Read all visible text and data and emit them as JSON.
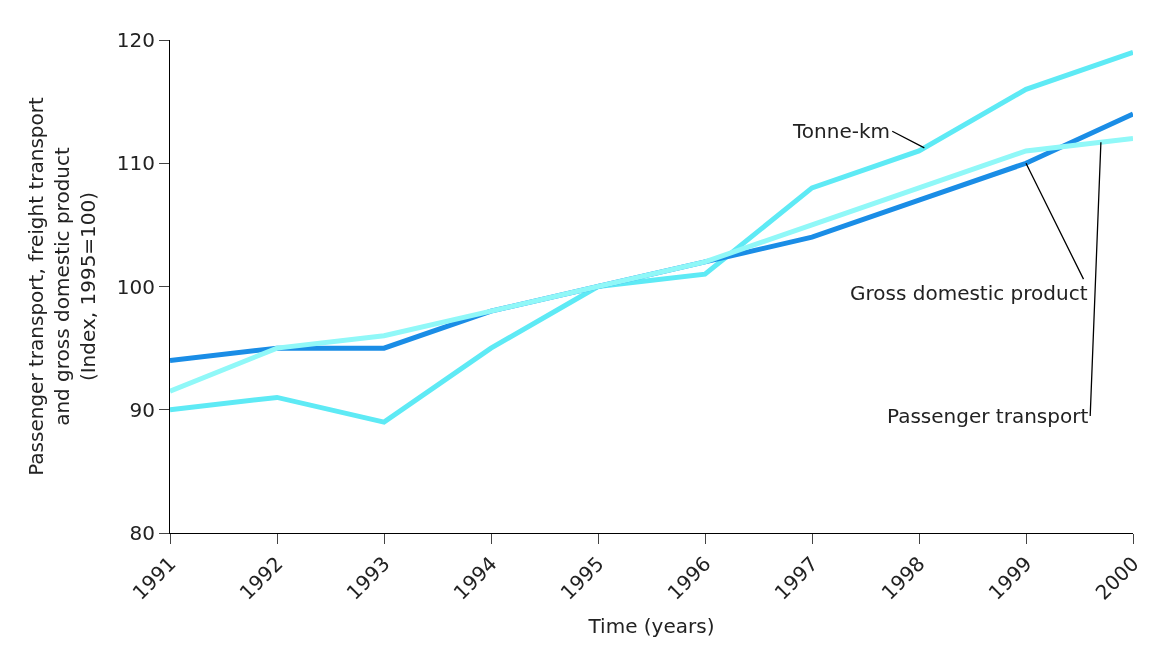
{
  "chart_data": {
    "type": "line",
    "xlabel": "Time (years)",
    "ylabel": "Passenger transport, freight transport\nand gross domestic product\n(Index, 1995=100)",
    "categories": [
      "1991",
      "1992",
      "1993",
      "1994",
      "1995",
      "1996",
      "1997",
      "1998",
      "1999",
      "2000"
    ],
    "series": [
      {
        "name": "Tonne-km",
        "color": "#5eeaf5",
        "values": [
          90,
          91,
          89,
          95,
          100,
          101,
          108,
          111,
          116,
          119
        ]
      },
      {
        "name": "Gross domestic product",
        "color": "#1a8de6",
        "values": [
          94,
          95,
          95,
          98,
          100,
          102,
          104,
          107,
          110,
          114
        ]
      },
      {
        "name": "Passenger transport",
        "color": "#90f8f8",
        "values": [
          91.5,
          95,
          96,
          98,
          100,
          102,
          105,
          108,
          111,
          112
        ]
      }
    ],
    "ylim": [
      80,
      120
    ],
    "yticks": [
      80,
      90,
      100,
      110,
      120
    ],
    "legend": false,
    "marker": "none",
    "line_style": "solid"
  }
}
